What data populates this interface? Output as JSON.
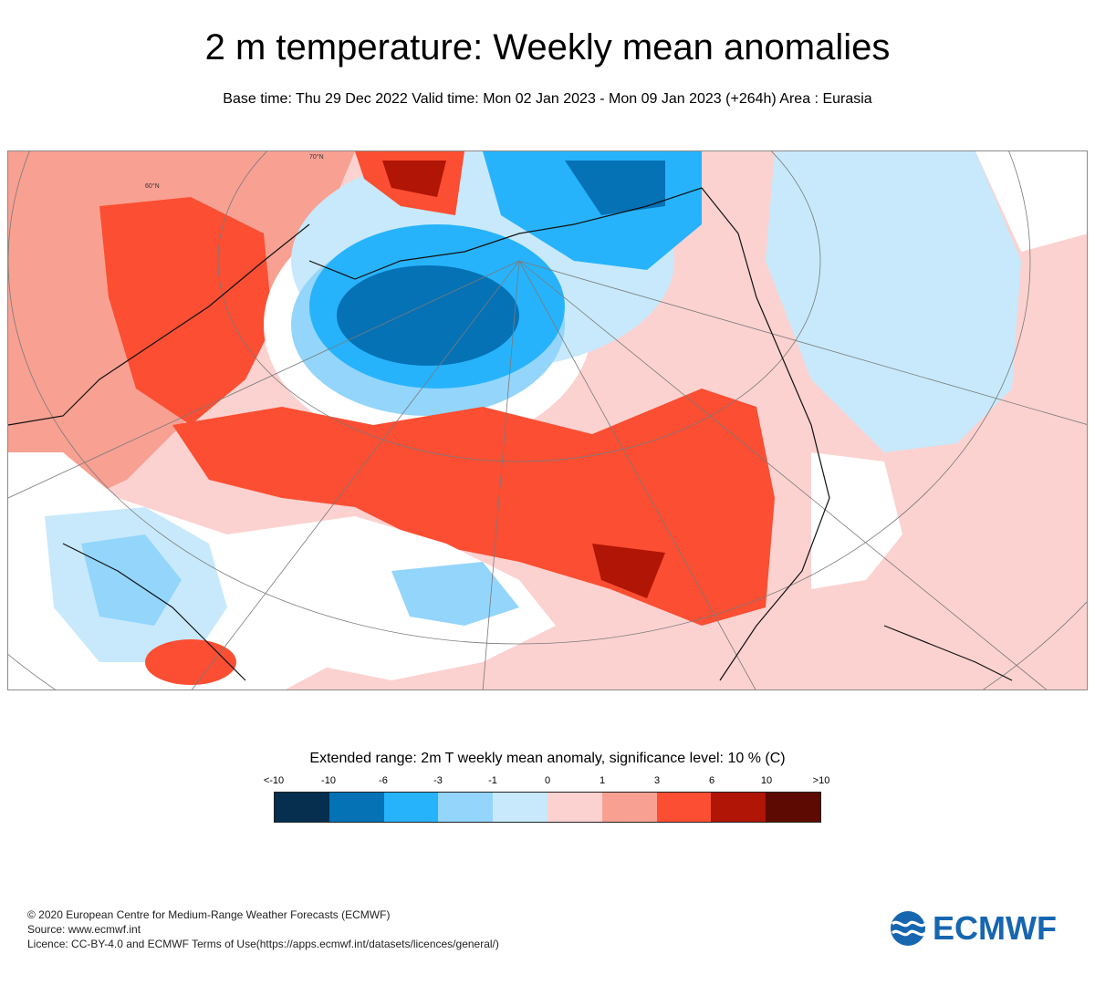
{
  "header": {
    "title": "2 m temperature: Weekly mean anomalies",
    "subtitle": "Base time: Thu 29 Dec 2022 Valid time: Mon 02 Jan 2023 - Mon 09 Jan 2023 (+264h) Area : Eurasia"
  },
  "map": {
    "graticule_labels": [
      "70°N",
      "60°N"
    ]
  },
  "legend": {
    "title": "Extended range: 2m T weekly mean anomaly, significance level: 10 % (C)",
    "ticks": [
      "<-10",
      "-10",
      "-6",
      "-3",
      "-1",
      "0",
      "1",
      "3",
      "6",
      "10",
      ">10"
    ],
    "colors": [
      "#052e4f",
      "#0572b6",
      "#27b3fb",
      "#93d5fb",
      "#c7e9fb",
      "#fbd2d0",
      "#f8a092",
      "#fb4e32",
      "#b01505",
      "#5d0b02"
    ]
  },
  "footer": {
    "copyright": "© 2020 European Centre for Medium-Range Weather Forecasts (ECMWF)",
    "source": "Source: www.ecmwf.int",
    "licence": "Licence: CC-BY-4.0 and ECMWF Terms of Use(https://apps.ecmwf.int/datasets/licences/general/)"
  },
  "logo": {
    "text": "ECMWF",
    "icon": "ecmwf-logo-icon",
    "color": "#1666b0"
  }
}
